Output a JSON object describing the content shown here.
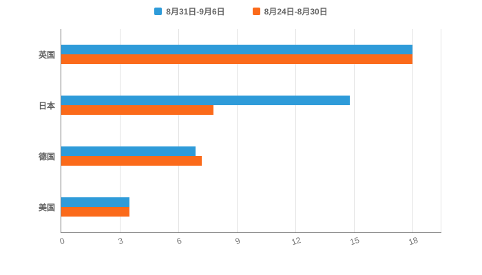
{
  "chart_data": {
    "type": "bar",
    "orientation": "horizontal",
    "title": "",
    "xlabel": "",
    "ylabel": "",
    "categories": [
      "英国",
      "日本",
      "德国",
      "美国"
    ],
    "series": [
      {
        "name": "8月31日-9月6日",
        "color": "#2E9BD9",
        "values": [
          18,
          14.8,
          6.9,
          3.5
        ]
      },
      {
        "name": "8月24日-8月30日",
        "color": "#FB6A1A",
        "values": [
          18,
          7.8,
          7.2,
          3.5
        ]
      }
    ],
    "xlim": [
      0,
      19.5
    ],
    "xticks": [
      0,
      3,
      6,
      9,
      12,
      15,
      18
    ],
    "grid": true,
    "legend_position": "top"
  },
  "colors": {
    "grid": "#e3e3e3",
    "axis": "#757575",
    "tick_text": "#757575",
    "category_text": "#5f5f5f",
    "legend_text": "#666666",
    "background": "#ffffff"
  }
}
